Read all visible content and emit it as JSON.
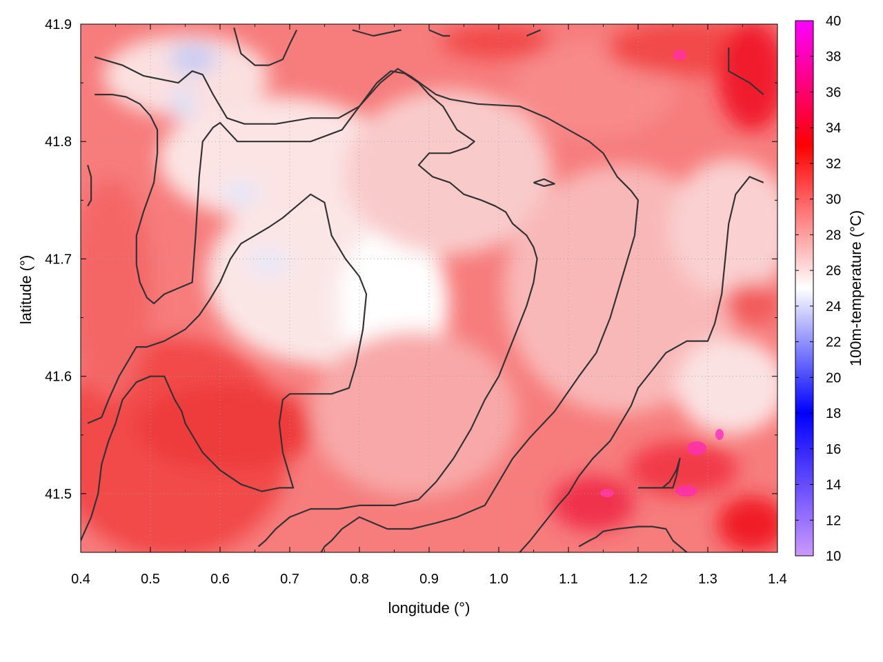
{
  "chart_data": {
    "type": "heatmap",
    "title": "",
    "xlabel": "longitude (°)",
    "ylabel": "latitude (°)",
    "colorbar_label": "100m-temperature (°C)",
    "xlim": [
      0.4,
      1.4
    ],
    "ylim": [
      41.45,
      41.9
    ],
    "x_ticks": [
      0.4,
      0.5,
      0.6,
      0.7,
      0.8,
      0.9,
      1.0,
      1.1,
      1.2,
      1.3,
      1.4
    ],
    "x_tick_labels": [
      "0.4",
      "0.5",
      "0.6",
      "0.7",
      "0.8",
      "0.9",
      "1.0",
      "1.1",
      "1.2",
      "1.3",
      "1.4"
    ],
    "y_ticks": [
      41.5,
      41.6,
      41.7,
      41.8,
      41.9
    ],
    "y_tick_labels": [
      "41.5",
      "41.6",
      "41.7",
      "41.8",
      "41.9"
    ],
    "color_range": [
      10,
      40
    ],
    "colorbar_ticks": [
      10,
      12,
      14,
      16,
      18,
      20,
      22,
      24,
      26,
      28,
      30,
      32,
      34,
      36,
      38,
      40
    ],
    "colorbar_tick_labels": [
      "10",
      "12",
      "14",
      "16",
      "18",
      "20",
      "22",
      "24",
      "26",
      "28",
      "30",
      "32",
      "34",
      "36",
      "38",
      "40"
    ],
    "colormap": [
      {
        "value": 10,
        "color": "#cc99ff"
      },
      {
        "value": 18,
        "color": "#0000ff"
      },
      {
        "value": 25,
        "color": "#ffffff"
      },
      {
        "value": 33,
        "color": "#ff0000"
      },
      {
        "value": 40,
        "color": "#ff00ff"
      }
    ],
    "grid": true,
    "contours": [
      [
        [
          0.42,
          41.872
        ],
        [
          0.46,
          41.865
        ],
        [
          0.49,
          41.856
        ],
        [
          0.54,
          41.85
        ],
        [
          0.56,
          41.86
        ],
        [
          0.575,
          41.857
        ],
        [
          0.59,
          41.84
        ],
        [
          0.61,
          41.82
        ],
        [
          0.635,
          41.815
        ],
        [
          0.68,
          41.815
        ],
        [
          0.73,
          41.82
        ],
        [
          0.77,
          41.82
        ],
        [
          0.8,
          41.83
        ],
        [
          0.83,
          41.85
        ],
        [
          0.855,
          41.862
        ],
        [
          0.875,
          41.855
        ],
        [
          0.91,
          41.84
        ],
        [
          0.93,
          41.836
        ],
        [
          0.97,
          41.832
        ],
        [
          1.03,
          41.83
        ],
        [
          1.07,
          41.82
        ],
        [
          1.1,
          41.81
        ],
        [
          1.13,
          41.8
        ],
        [
          1.15,
          41.79
        ],
        [
          1.17,
          41.77
        ],
        [
          1.19,
          41.758
        ],
        [
          1.2,
          41.75
        ],
        [
          1.195,
          41.72
        ],
        [
          1.18,
          41.69
        ],
        [
          1.16,
          41.65
        ],
        [
          1.14,
          41.62
        ],
        [
          1.115,
          41.6
        ],
        [
          1.08,
          41.57
        ],
        [
          1.045,
          41.548
        ],
        [
          1.02,
          41.53
        ],
        [
          1.0,
          41.51
        ],
        [
          0.98,
          41.49
        ],
        [
          0.94,
          41.48
        ],
        [
          0.91,
          41.475
        ],
        [
          0.875,
          41.47
        ],
        [
          0.84,
          41.47
        ],
        [
          0.8,
          41.48
        ],
        [
          0.775,
          41.47
        ],
        [
          0.76,
          41.46
        ],
        [
          0.75,
          41.455
        ],
        [
          0.745,
          41.45
        ]
      ],
      [
        [
          0.42,
          41.84
        ],
        [
          0.445,
          41.84
        ],
        [
          0.465,
          41.838
        ],
        [
          0.485,
          41.832
        ],
        [
          0.5,
          41.822
        ],
        [
          0.51,
          41.81
        ],
        [
          0.51,
          41.79
        ],
        [
          0.505,
          41.765
        ],
        [
          0.49,
          41.74
        ],
        [
          0.48,
          41.72
        ],
        [
          0.48,
          41.695
        ],
        [
          0.485,
          41.68
        ],
        [
          0.495,
          41.667
        ],
        [
          0.505,
          41.662
        ],
        [
          0.52,
          41.67
        ],
        [
          0.54,
          41.675
        ],
        [
          0.56,
          41.68
        ],
        [
          0.565,
          41.72
        ],
        [
          0.57,
          41.77
        ],
        [
          0.575,
          41.8
        ],
        [
          0.59,
          41.812
        ],
        [
          0.6,
          41.816
        ],
        [
          0.625,
          41.8
        ],
        [
          0.66,
          41.8
        ],
        [
          0.695,
          41.8
        ],
        [
          0.73,
          41.8
        ],
        [
          0.775,
          41.81
        ],
        [
          0.8,
          41.83
        ],
        [
          0.825,
          41.85
        ],
        [
          0.845,
          41.86
        ],
        [
          0.865,
          41.858
        ],
        [
          0.885,
          41.85
        ],
        [
          0.9,
          41.84
        ],
        [
          0.92,
          41.83
        ],
        [
          0.94,
          41.81
        ],
        [
          0.965,
          41.8
        ],
        [
          0.955,
          41.795
        ],
        [
          0.93,
          41.79
        ],
        [
          0.9,
          41.79
        ],
        [
          0.885,
          41.78
        ],
        [
          0.905,
          41.77
        ],
        [
          0.93,
          41.765
        ],
        [
          0.95,
          41.755
        ],
        [
          0.975,
          41.75
        ],
        [
          0.995,
          41.745
        ],
        [
          1.01,
          41.74
        ],
        [
          1.02,
          41.73
        ],
        [
          1.04,
          41.72
        ],
        [
          1.05,
          41.71
        ],
        [
          1.055,
          41.7
        ],
        [
          1.05,
          41.68
        ],
        [
          1.04,
          41.66
        ],
        [
          1.02,
          41.63
        ],
        [
          1.01,
          41.615
        ],
        [
          1.0,
          41.6
        ],
        [
          0.98,
          41.58
        ],
        [
          0.96,
          41.555
        ],
        [
          0.935,
          41.53
        ],
        [
          0.91,
          41.51
        ],
        [
          0.885,
          41.495
        ],
        [
          0.85,
          41.49
        ],
        [
          0.8,
          41.49
        ],
        [
          0.77,
          41.487
        ],
        [
          0.73,
          41.487
        ],
        [
          0.7,
          41.48
        ],
        [
          0.68,
          41.47
        ],
        [
          0.665,
          41.46
        ],
        [
          0.655,
          41.455
        ]
      ],
      [
        [
          0.41,
          41.56
        ],
        [
          0.43,
          41.565
        ],
        [
          0.44,
          41.58
        ],
        [
          0.455,
          41.6
        ],
        [
          0.47,
          41.615
        ],
        [
          0.48,
          41.625
        ],
        [
          0.495,
          41.625
        ],
        [
          0.52,
          41.63
        ],
        [
          0.55,
          41.64
        ],
        [
          0.57,
          41.652
        ],
        [
          0.585,
          41.665
        ],
        [
          0.6,
          41.68
        ],
        [
          0.615,
          41.7
        ],
        [
          0.63,
          41.713
        ],
        [
          0.65,
          41.72
        ],
        [
          0.67,
          41.727
        ],
        [
          0.69,
          41.735
        ],
        [
          0.71,
          41.745
        ],
        [
          0.73,
          41.755
        ],
        [
          0.75,
          41.748
        ],
        [
          0.76,
          41.72
        ],
        [
          0.78,
          41.7
        ],
        [
          0.8,
          41.685
        ],
        [
          0.81,
          41.67
        ],
        [
          0.805,
          41.64
        ],
        [
          0.795,
          41.61
        ],
        [
          0.785,
          41.59
        ],
        [
          0.76,
          41.585
        ],
        [
          0.72,
          41.585
        ],
        [
          0.7,
          41.585
        ],
        [
          0.69,
          41.58
        ],
        [
          0.685,
          41.56
        ],
        [
          0.69,
          41.535
        ],
        [
          0.7,
          41.515
        ],
        [
          0.705,
          41.505
        ],
        [
          0.685,
          41.505
        ],
        [
          0.66,
          41.502
        ],
        [
          0.63,
          41.508
        ],
        [
          0.6,
          41.52
        ],
        [
          0.575,
          41.535
        ],
        [
          0.56,
          41.55
        ],
        [
          0.55,
          41.56
        ],
        [
          0.545,
          41.57
        ],
        [
          0.535,
          41.58
        ],
        [
          0.52,
          41.6
        ],
        [
          0.5,
          41.6
        ],
        [
          0.48,
          41.595
        ],
        [
          0.46,
          41.58
        ],
        [
          0.45,
          41.56
        ],
        [
          0.44,
          41.545
        ],
        [
          0.43,
          41.525
        ],
        [
          0.425,
          41.5
        ],
        [
          0.415,
          41.48
        ],
        [
          0.4,
          41.46
        ]
      ],
      [
        [
          1.115,
          41.455
        ],
        [
          1.13,
          41.46
        ],
        [
          1.14,
          41.463
        ],
        [
          1.15,
          41.468
        ],
        [
          1.17,
          41.47
        ],
        [
          1.2,
          41.472
        ],
        [
          1.22,
          41.472
        ],
        [
          1.24,
          41.47
        ],
        [
          1.25,
          41.46
        ],
        [
          1.26,
          41.455
        ],
        [
          1.27,
          41.45
        ]
      ],
      [
        [
          1.2,
          41.505
        ],
        [
          1.235,
          41.505
        ],
        [
          1.245,
          41.51
        ],
        [
          1.255,
          41.52
        ],
        [
          1.26,
          41.53
        ],
        [
          1.255,
          41.515
        ],
        [
          1.25,
          41.505
        ],
        [
          1.21,
          41.505
        ]
      ],
      [
        [
          1.05,
          41.765
        ],
        [
          1.065,
          41.762
        ],
        [
          1.08,
          41.764
        ],
        [
          1.065,
          41.768
        ],
        [
          1.05,
          41.765
        ]
      ],
      [
        [
          1.33,
          41.88
        ],
        [
          1.33,
          41.86
        ],
        [
          1.36,
          41.85
        ],
        [
          1.38,
          41.84
        ]
      ],
      [
        [
          0.41,
          41.78
        ],
        [
          0.415,
          41.77
        ],
        [
          0.415,
          41.75
        ],
        [
          0.41,
          41.745
        ]
      ],
      [
        [
          1.38,
          41.765
        ],
        [
          1.36,
          41.77
        ],
        [
          1.34,
          41.755
        ],
        [
          1.33,
          41.73
        ],
        [
          1.325,
          41.7
        ],
        [
          1.32,
          41.67
        ],
        [
          1.31,
          41.645
        ],
        [
          1.3,
          41.63
        ],
        [
          1.27,
          41.63
        ],
        [
          1.24,
          41.62
        ],
        [
          1.22,
          41.605
        ],
        [
          1.2,
          41.59
        ],
        [
          1.19,
          41.575
        ],
        [
          1.175,
          41.56
        ],
        [
          1.16,
          41.545
        ],
        [
          1.135,
          41.53
        ],
        [
          1.115,
          41.515
        ],
        [
          1.1,
          41.5
        ],
        [
          1.085,
          41.49
        ],
        [
          1.065,
          41.475
        ],
        [
          1.045,
          41.46
        ],
        [
          1.03,
          41.45
        ]
      ],
      [
        [
          0.62,
          41.897
        ],
        [
          0.63,
          41.875
        ],
        [
          0.65,
          41.865
        ],
        [
          0.67,
          41.865
        ],
        [
          0.69,
          41.87
        ],
        [
          0.7,
          41.883
        ],
        [
          0.71,
          41.895
        ]
      ],
      [
        [
          0.79,
          41.895
        ],
        [
          0.82,
          41.89
        ],
        [
          0.86,
          41.895
        ]
      ],
      [
        [
          0.9,
          41.895
        ],
        [
          0.92,
          41.89
        ],
        [
          0.93,
          41.89
        ]
      ],
      [
        [
          1.04,
          41.89
        ],
        [
          1.06,
          41.895
        ]
      ]
    ]
  }
}
